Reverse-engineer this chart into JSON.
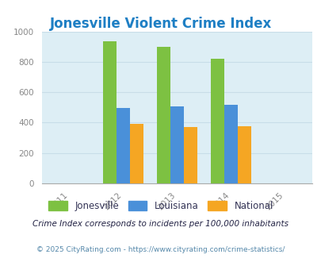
{
  "title": "Jonesville Violent Crime Index",
  "title_color": "#1e7fc4",
  "years": [
    2011,
    2012,
    2013,
    2014,
    2015
  ],
  "bar_years": [
    2012,
    2013,
    2014
  ],
  "jonesville": [
    935,
    900,
    820
  ],
  "louisiana": [
    495,
    507,
    515
  ],
  "national": [
    390,
    370,
    378
  ],
  "colors": {
    "jonesville": "#7dc142",
    "louisiana": "#4a90d9",
    "national": "#f5a623"
  },
  "ylim": [
    0,
    1000
  ],
  "yticks": [
    0,
    200,
    400,
    600,
    800,
    1000
  ],
  "axis_bg_color": "#ddeef5",
  "legend_labels": [
    "Jonesville",
    "Louisiana",
    "National"
  ],
  "footnote1": "Crime Index corresponds to incidents per 100,000 inhabitants",
  "footnote2": "© 2025 CityRating.com - https://www.cityrating.com/crime-statistics/",
  "footnote1_color": "#222244",
  "footnote2_color": "#5588aa",
  "bar_width": 0.25,
  "grid_color": "#c8dde8",
  "xlim": [
    2010.5,
    2015.5
  ]
}
